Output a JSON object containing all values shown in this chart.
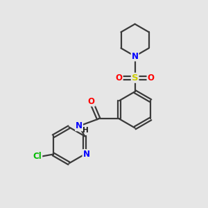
{
  "background_color": "#e6e6e6",
  "atom_colors": {
    "C": "#1a1a1a",
    "N": "#0000ff",
    "O": "#ff0000",
    "S": "#cccc00",
    "Cl": "#00bb00",
    "H": "#1a1a1a"
  },
  "bond_color": "#3a3a3a",
  "bond_width": 1.6,
  "font_size_atoms": 8.5
}
